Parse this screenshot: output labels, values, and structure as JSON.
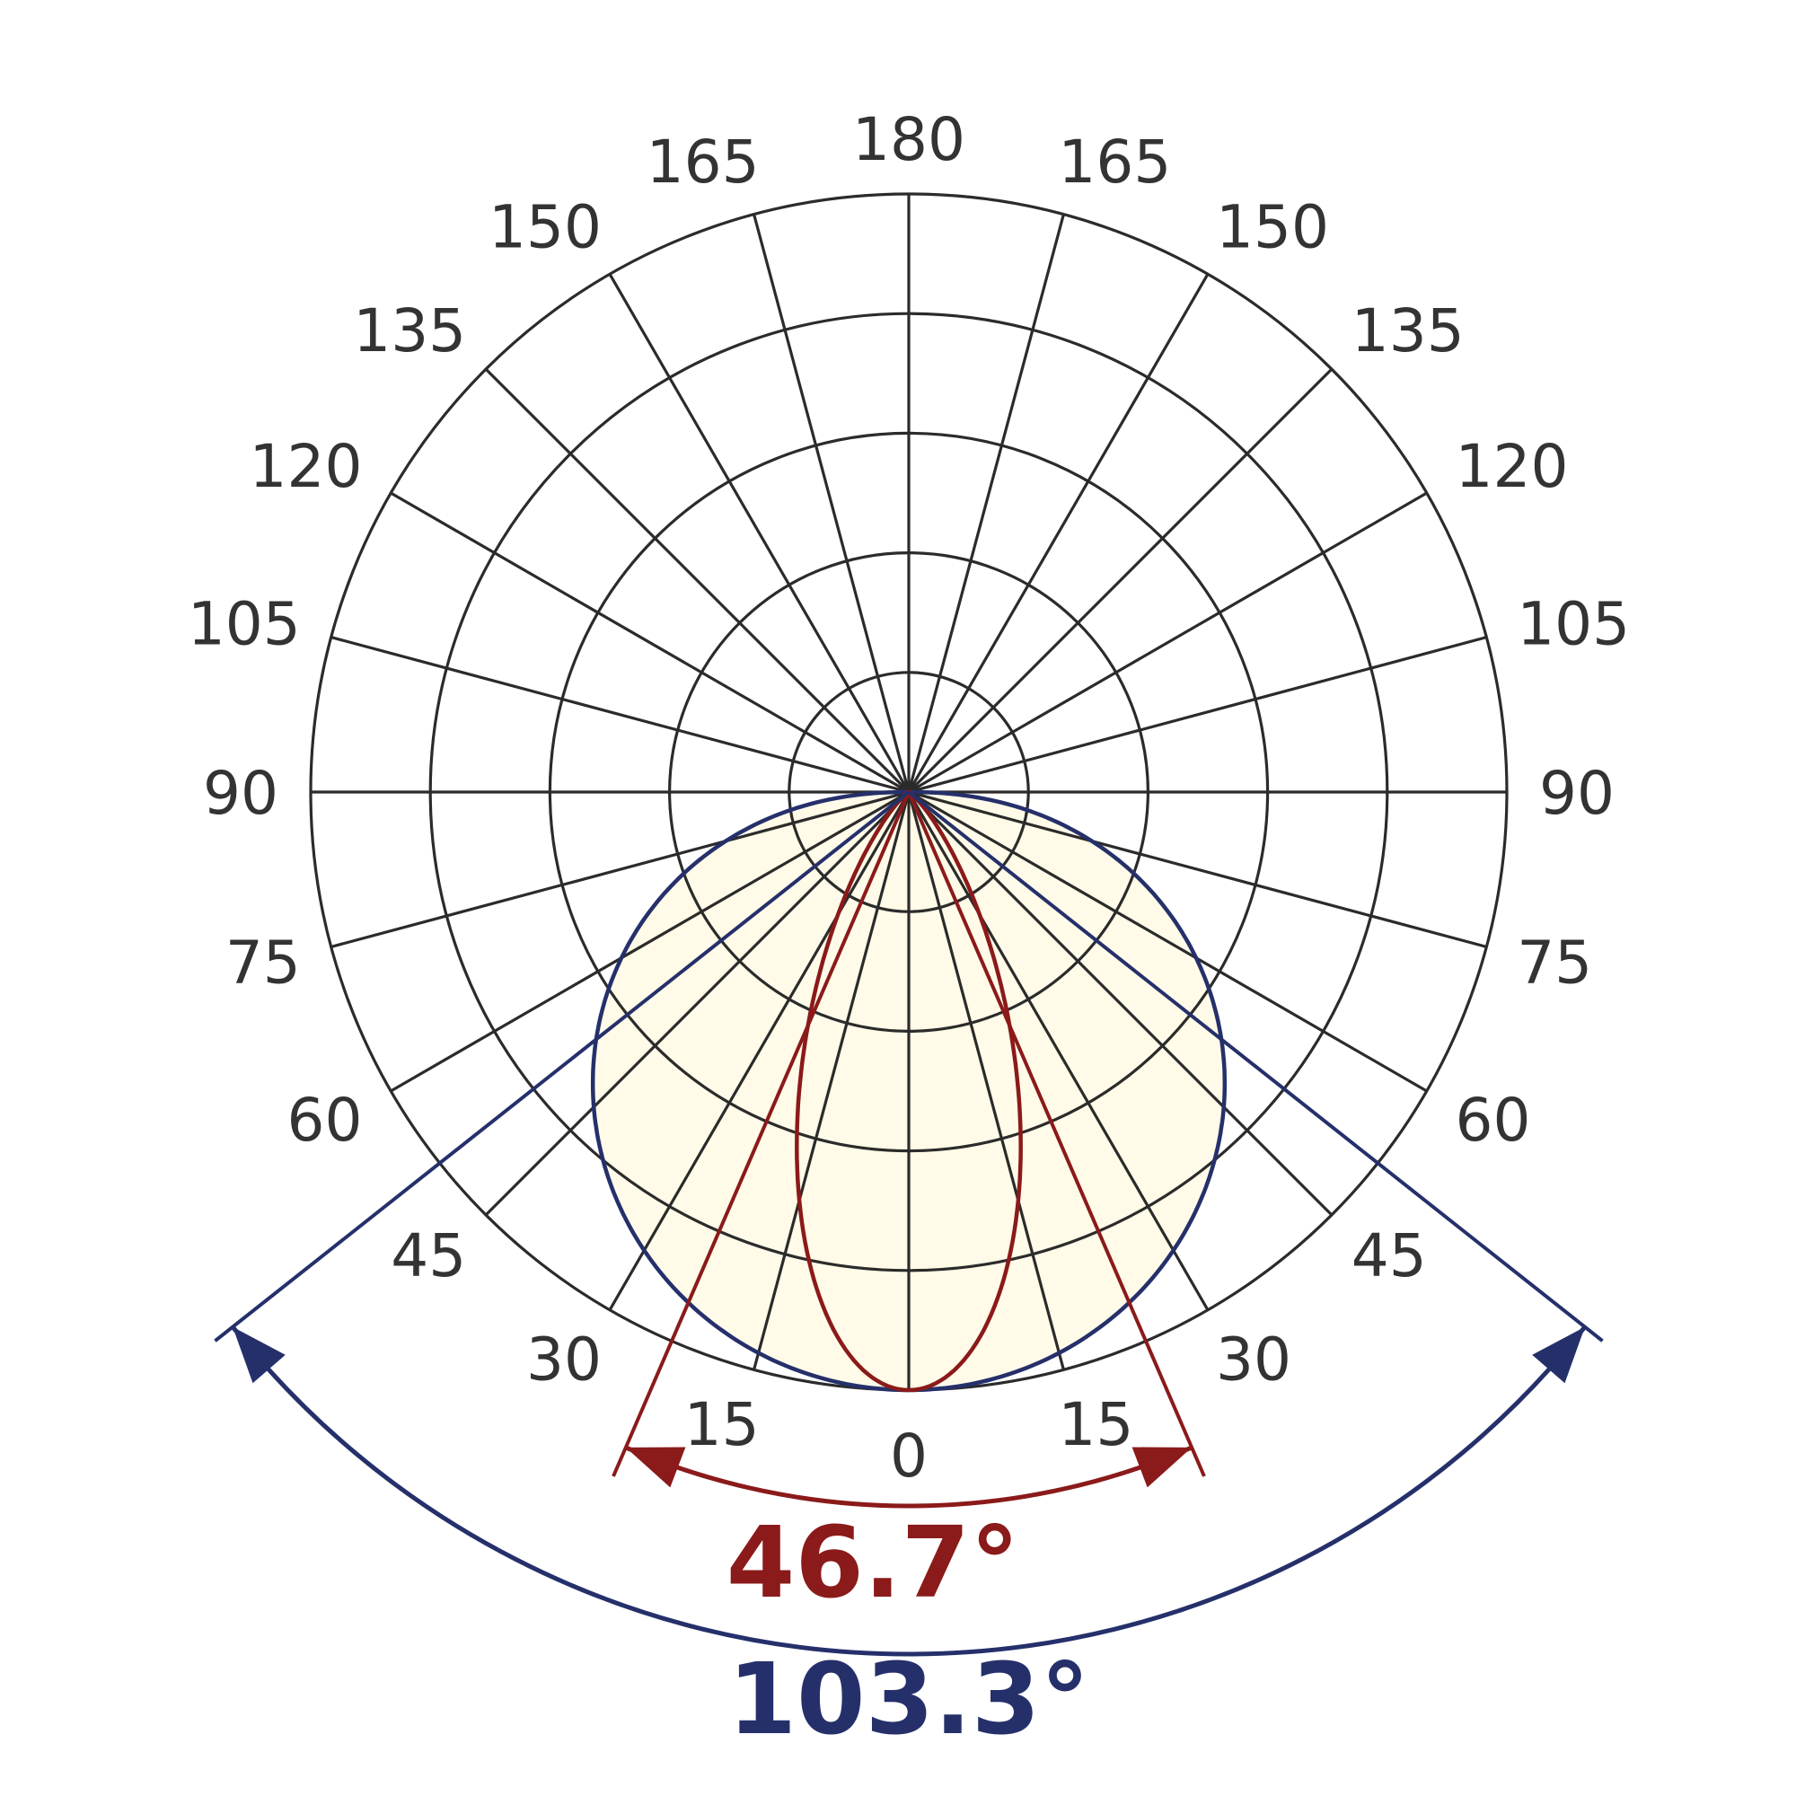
{
  "chart_data": {
    "type": "polar",
    "angle_unit": "deg",
    "angle_range": [
      0,
      180
    ],
    "angle_step": 15,
    "rings": 5,
    "tick_labels": [
      "0",
      "15",
      "30",
      "45",
      "60",
      "75",
      "90",
      "105",
      "120",
      "135",
      "150",
      "165",
      "180"
    ],
    "grid": true,
    "colors": {
      "grid": "#2b2b2b",
      "narrow": "#8b1a1a",
      "wide": "#25306b",
      "fill": "#fffbe8"
    },
    "beams": [
      {
        "id": "narrow",
        "beam_angle": 46.7,
        "label": "46.7°",
        "color": "#8b1a1a"
      },
      {
        "id": "wide",
        "beam_angle": 103.3,
        "label": "103.3°",
        "color": "#25306b"
      }
    ]
  }
}
